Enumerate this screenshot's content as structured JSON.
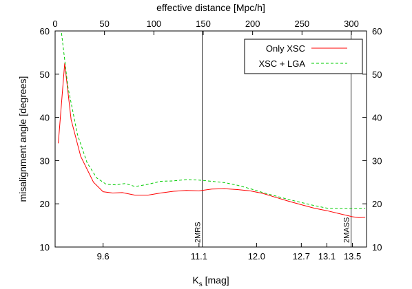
{
  "chart_data": {
    "type": "line",
    "xlabel": "K",
    "xlabel_sub": "s",
    "xlabel_unit": " [mag]",
    "x2label": "effective distance [Mpc/h]",
    "ylabel": "misalignment angle [degrees]",
    "ylim": [
      10,
      60
    ],
    "xlim": [
      8.85,
      13.72
    ],
    "x_ticks": [
      9.6,
      11.1,
      12.0,
      12.7,
      13.1,
      13.5
    ],
    "x_tick_labels": [
      "9.6",
      "11.1",
      "12.0",
      "12.7",
      "13.1",
      "13.5"
    ],
    "x2_ticks": [
      0,
      50,
      100,
      150,
      200,
      250,
      300
    ],
    "x2_tick_labels": [
      "0",
      "50",
      "100",
      "150",
      "200",
      "250",
      "300"
    ],
    "y_ticks": [
      10,
      20,
      30,
      40,
      50,
      60
    ],
    "y_tick_labels": [
      "10",
      "20",
      "30",
      "40",
      "50",
      "60"
    ],
    "legend_position": "top-right",
    "series": [
      {
        "name": "Only XSC",
        "color": "#ff0000",
        "dash": "solid",
        "x": [
          8.9,
          9.0,
          9.1,
          9.25,
          9.45,
          9.6,
          9.75,
          9.9,
          10.1,
          10.3,
          10.5,
          10.7,
          10.9,
          11.1,
          11.3,
          11.5,
          11.7,
          11.9,
          12.1,
          12.3,
          12.5,
          12.7,
          12.9,
          13.1,
          13.3,
          13.5,
          13.6,
          13.7
        ],
        "y": [
          34.0,
          52.5,
          39.5,
          31.0,
          25.0,
          22.8,
          22.5,
          22.6,
          22.0,
          22.0,
          22.5,
          22.9,
          23.1,
          23.0,
          23.4,
          23.5,
          23.3,
          23.0,
          22.4,
          21.5,
          20.6,
          19.8,
          19.0,
          18.4,
          17.7,
          17.0,
          16.8,
          16.9
        ],
        "markers_x": [
          8.9,
          9.0,
          9.1,
          9.25,
          9.45,
          9.6,
          9.75,
          9.9,
          10.1,
          10.3,
          10.5,
          10.7,
          10.9,
          11.1,
          11.3,
          11.5,
          11.7,
          11.9,
          12.1,
          12.3,
          12.5,
          12.7,
          12.9,
          13.1,
          13.3,
          13.5,
          13.6,
          13.7
        ]
      },
      {
        "name": "XSC + LGA",
        "color": "#00cc00",
        "dash": "dashed",
        "x": [
          8.95,
          9.05,
          9.2,
          9.35,
          9.5,
          9.65,
          9.8,
          9.95,
          10.1,
          10.3,
          10.5,
          10.7,
          10.9,
          11.1,
          11.3,
          11.5,
          11.7,
          11.9,
          12.1,
          12.3,
          12.5,
          12.7,
          12.9,
          13.1,
          13.3,
          13.5,
          13.6,
          13.7
        ],
        "y": [
          59.5,
          47.0,
          36.0,
          29.5,
          26.0,
          24.5,
          24.4,
          24.7,
          24.0,
          24.5,
          25.2,
          25.3,
          25.6,
          25.5,
          25.2,
          24.9,
          24.3,
          23.5,
          22.6,
          21.8,
          21.0,
          20.3,
          19.6,
          19.0,
          18.9,
          18.9,
          18.9,
          19.0
        ]
      }
    ],
    "vlines": [
      {
        "x": 11.15,
        "label": "2MRS"
      },
      {
        "x": 13.48,
        "label": "2MASS"
      }
    ]
  }
}
